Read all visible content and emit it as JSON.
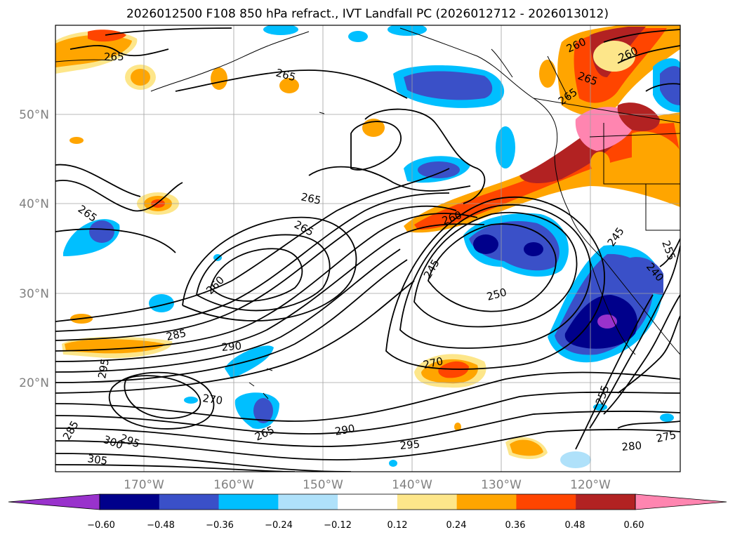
{
  "title": "2026012500 F108 850 hPa refract., IVT Landfall PC (2026012712 - 2026013012)",
  "lat_labels": [
    "50°N",
    "40°N",
    "30°N",
    "20°N"
  ],
  "lon_labels": [
    "170°W",
    "160°W",
    "150°W",
    "140°W",
    "130°W",
    "120°W"
  ],
  "contour_labels": [
    "265",
    "265",
    "265",
    "265",
    "265",
    "260",
    "260",
    "260",
    "265",
    "265",
    "245",
    "250",
    "285",
    "290",
    "295",
    "270",
    "270",
    "265",
    "290",
    "295",
    "280",
    "275",
    "255",
    "305",
    "300",
    "295",
    "285",
    "245",
    "240",
    "255",
    "260"
  ],
  "colorbar": {
    "ticks": [
      "−0.60",
      "−0.48",
      "−0.36",
      "−0.24",
      "−0.12",
      "0.12",
      "0.24",
      "0.36",
      "0.48",
      "0.60"
    ],
    "colors": [
      "#9932cc",
      "#00008b",
      "#3a50c8",
      "#00bfff",
      "#afe1fa",
      "#ffffff",
      "#fde68a",
      "#ffa500",
      "#ff4500",
      "#b22222",
      "#ff85b0"
    ]
  }
}
